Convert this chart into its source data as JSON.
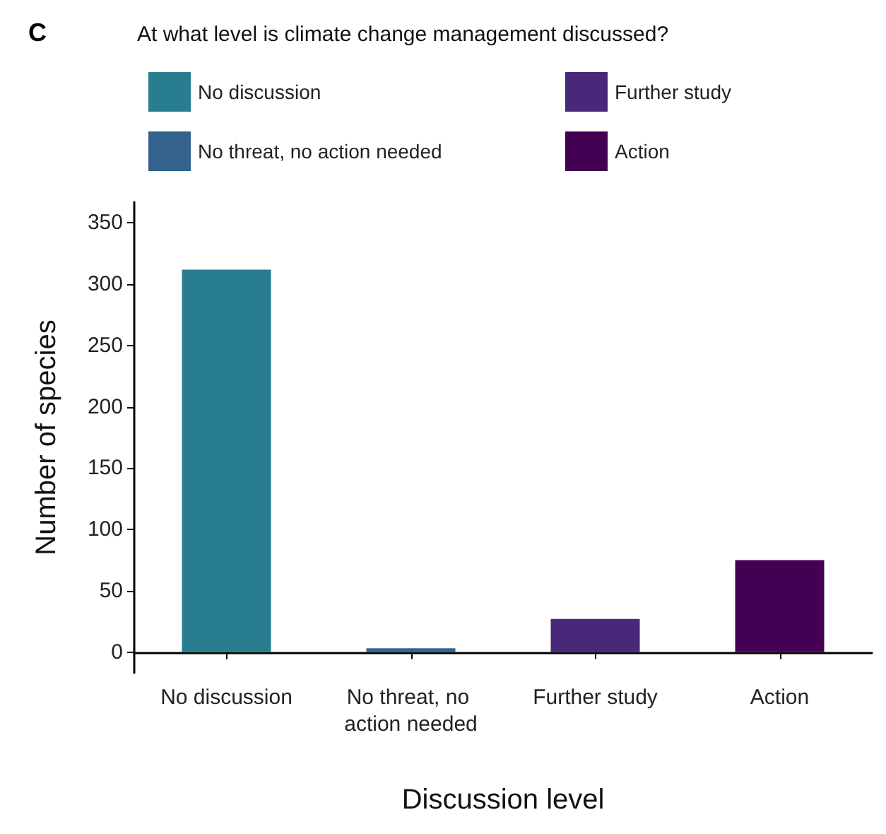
{
  "chart_data": {
    "type": "bar",
    "legend_title": "At what level is climate change management discussed?",
    "xlabel": "Discussion level",
    "ylabel": "Number of species",
    "annotations": [
      "C"
    ],
    "categories": [
      "No discussion",
      "No threat, no action needed",
      "Further study",
      "Action"
    ],
    "series": [
      {
        "name": "No discussion",
        "color": "#287d8e",
        "values": [
          312,
          null,
          null,
          null
        ]
      },
      {
        "name": "No threat, no action needed",
        "color": "#33638d",
        "values": [
          null,
          3,
          null,
          null
        ]
      },
      {
        "name": "Further study",
        "color": "#482878",
        "values": [
          null,
          null,
          27,
          null
        ]
      },
      {
        "name": "Action",
        "color": "#440154",
        "values": [
          null,
          null,
          null,
          75
        ]
      }
    ],
    "ylim": [
      -17,
      367
    ],
    "yticks": [
      0,
      50,
      100,
      150,
      200,
      250,
      300,
      350
    ],
    "grid": false,
    "legend": "top"
  }
}
